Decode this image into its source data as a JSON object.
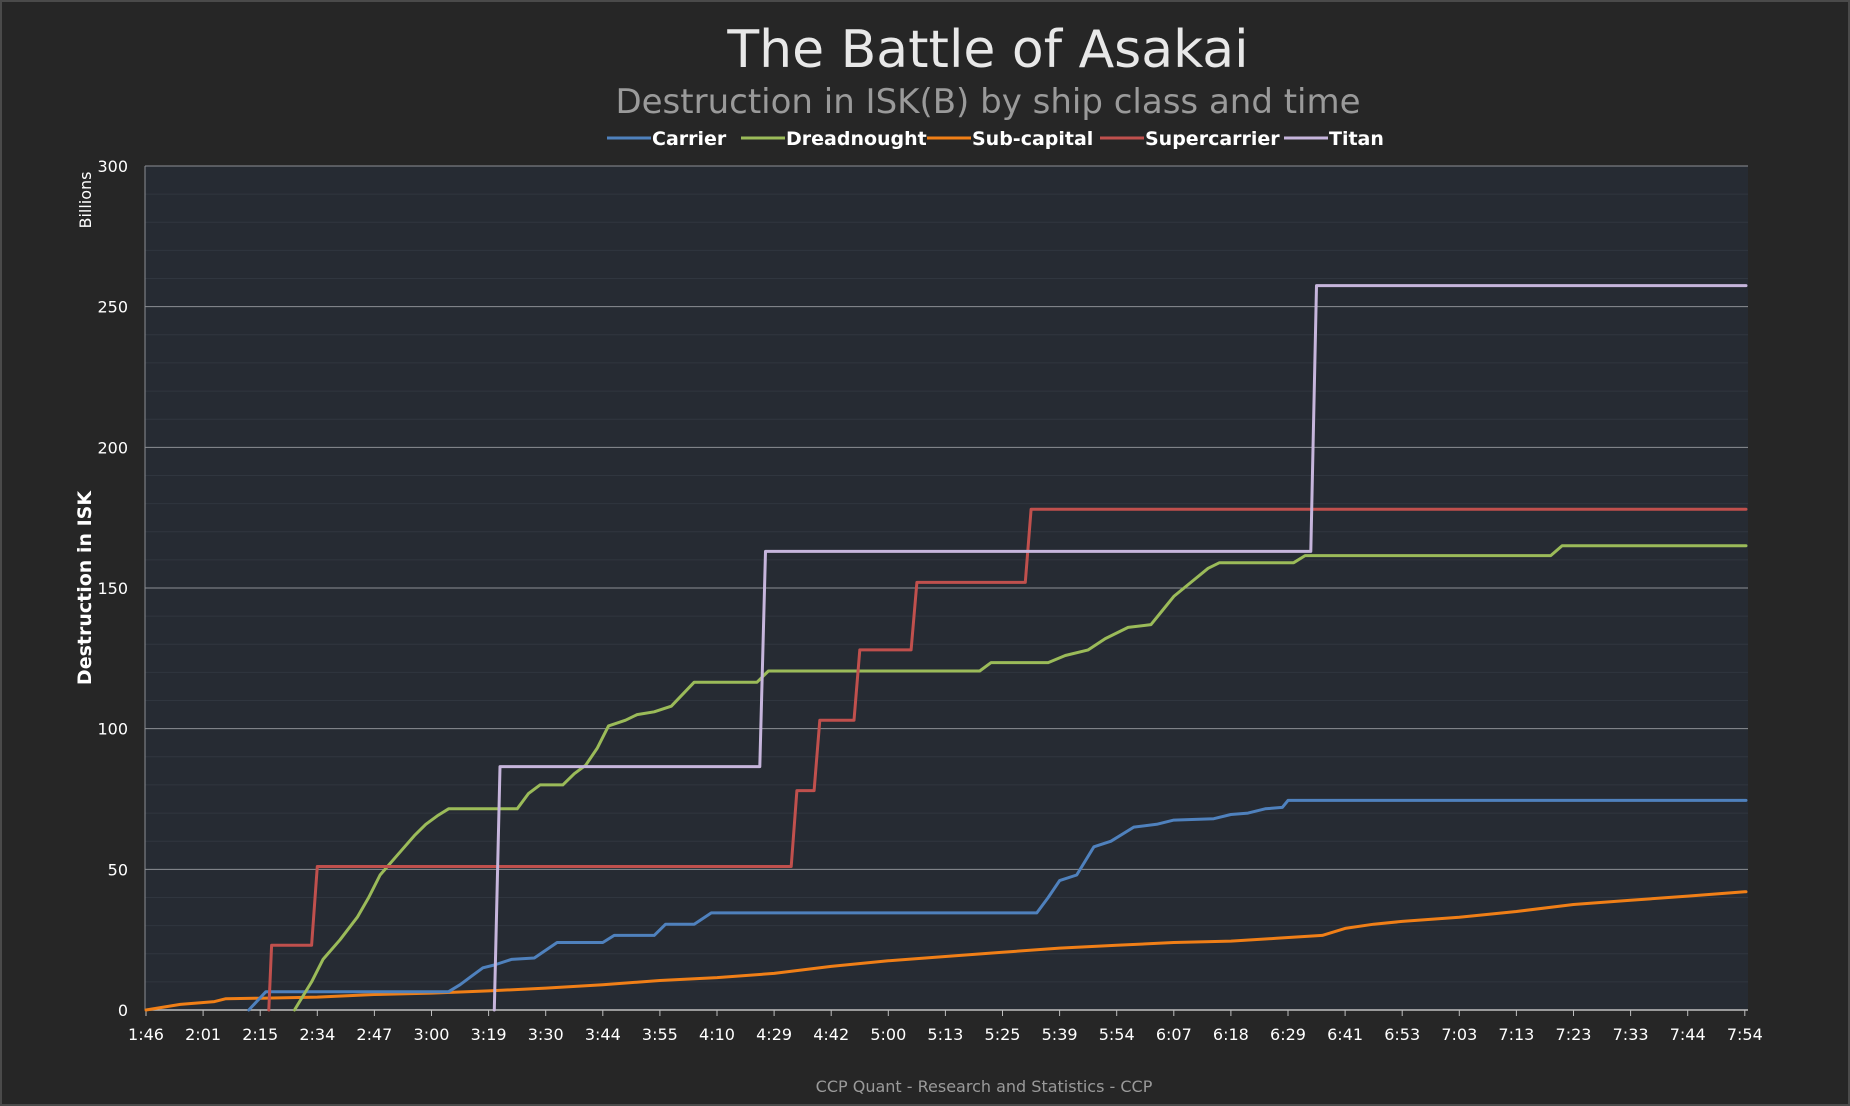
{
  "chart_data": {
    "type": "line",
    "title": "The Battle of Asakai",
    "subtitle": "Destruction in ISK(B) by ship class and time",
    "ylabel": "Destruction in ISK",
    "y_unit": "Billions",
    "credit": "CCP Quant - Research and Statistics - CCP",
    "ylim": [
      0,
      300
    ],
    "yticks": [
      0,
      50,
      100,
      150,
      200,
      250,
      300
    ],
    "grid": true,
    "legend_position": "top-center",
    "xlim": [
      0,
      28.5
    ],
    "xticks": [
      {
        "x": 0,
        "label": "1:46"
      },
      {
        "x": 1,
        "label": "2:01"
      },
      {
        "x": 2,
        "label": "2:15"
      },
      {
        "x": 3,
        "label": "2:34"
      },
      {
        "x": 4,
        "label": "2:47"
      },
      {
        "x": 5,
        "label": "3:00"
      },
      {
        "x": 6,
        "label": "3:19"
      },
      {
        "x": 7,
        "label": "3:30"
      },
      {
        "x": 8,
        "label": "3:44"
      },
      {
        "x": 9,
        "label": "3:55"
      },
      {
        "x": 10,
        "label": "4:10"
      },
      {
        "x": 11,
        "label": "4:29"
      },
      {
        "x": 12,
        "label": "4:42"
      },
      {
        "x": 13,
        "label": "5:00"
      },
      {
        "x": 14,
        "label": "5:13"
      },
      {
        "x": 15,
        "label": "5:25"
      },
      {
        "x": 16,
        "label": "5:39"
      },
      {
        "x": 17,
        "label": "5:54"
      },
      {
        "x": 18,
        "label": "6:07"
      },
      {
        "x": 19,
        "label": "6:18"
      },
      {
        "x": 20,
        "label": "6:29"
      },
      {
        "x": 21,
        "label": "6:41"
      },
      {
        "x": 22,
        "label": "6:53"
      },
      {
        "x": 23,
        "label": "7:03"
      },
      {
        "x": 24,
        "label": "7:13"
      },
      {
        "x": 25,
        "label": "7:23"
      },
      {
        "x": 26,
        "label": "7:33"
      },
      {
        "x": 27,
        "label": "7:44"
      },
      {
        "x": 28,
        "label": "7:54"
      }
    ],
    "series": [
      {
        "name": "Carrier",
        "color": "#4f81bd",
        "points": [
          [
            1.8,
            0
          ],
          [
            2.1,
            6.5
          ],
          [
            5.3,
            6.5
          ],
          [
            5.5,
            9
          ],
          [
            5.7,
            12
          ],
          [
            5.9,
            15
          ],
          [
            6.1,
            16
          ],
          [
            6.4,
            18
          ],
          [
            6.8,
            18.5
          ],
          [
            7.2,
            24
          ],
          [
            8,
            24
          ],
          [
            8.2,
            26.5
          ],
          [
            8.9,
            26.5
          ],
          [
            9.1,
            30.5
          ],
          [
            9.6,
            30.5
          ],
          [
            9.9,
            34.5
          ],
          [
            10.5,
            34.5
          ],
          [
            15.6,
            34.5
          ],
          [
            15.8,
            40
          ],
          [
            16.0,
            46
          ],
          [
            16.3,
            48
          ],
          [
            16.6,
            58
          ],
          [
            16.9,
            60
          ],
          [
            17.3,
            65
          ],
          [
            17.7,
            66
          ],
          [
            18.0,
            67.5
          ],
          [
            18.7,
            68
          ],
          [
            19.0,
            69.5
          ],
          [
            19.3,
            70
          ],
          [
            19.6,
            71.5
          ],
          [
            19.9,
            72
          ],
          [
            20.0,
            74.5
          ],
          [
            28.5,
            74.5
          ]
        ]
      },
      {
        "name": "Dreadnought",
        "color": "#9bbb59",
        "points": [
          [
            2.6,
            0
          ],
          [
            2.9,
            10
          ],
          [
            3.1,
            18
          ],
          [
            3.4,
            25
          ],
          [
            3.7,
            33
          ],
          [
            3.9,
            40
          ],
          [
            4.1,
            48
          ],
          [
            4.4,
            55
          ],
          [
            4.7,
            62
          ],
          [
            4.9,
            66
          ],
          [
            5.1,
            69
          ],
          [
            5.3,
            71.5
          ],
          [
            6.5,
            71.5
          ],
          [
            6.7,
            77
          ],
          [
            6.9,
            80
          ],
          [
            7.3,
            80
          ],
          [
            7.5,
            84
          ],
          [
            7.7,
            87
          ],
          [
            7.9,
            93
          ],
          [
            8.1,
            101
          ],
          [
            8.4,
            103
          ],
          [
            8.6,
            105
          ],
          [
            8.9,
            106
          ],
          [
            9.2,
            108
          ],
          [
            9.6,
            116.5
          ],
          [
            10.7,
            116.5
          ],
          [
            10.9,
            120.5
          ],
          [
            14.6,
            120.5
          ],
          [
            14.8,
            123.5
          ],
          [
            15.8,
            123.5
          ],
          [
            16.1,
            126
          ],
          [
            16.5,
            128
          ],
          [
            16.8,
            132
          ],
          [
            17.2,
            136
          ],
          [
            17.6,
            137
          ],
          [
            17.8,
            142
          ],
          [
            18.0,
            147
          ],
          [
            18.3,
            152
          ],
          [
            18.6,
            157
          ],
          [
            18.8,
            159
          ],
          [
            20.1,
            159
          ],
          [
            20.3,
            161.5
          ],
          [
            24.6,
            161.5
          ],
          [
            24.8,
            165
          ],
          [
            28.5,
            165
          ]
        ]
      },
      {
        "name": "Sub-capital",
        "color": "#f07f17",
        "points": [
          [
            0,
            0
          ],
          [
            0.6,
            2
          ],
          [
            1.2,
            3
          ],
          [
            1.4,
            4
          ],
          [
            2,
            4.2
          ],
          [
            3,
            4.6
          ],
          [
            4,
            5.5
          ],
          [
            5,
            6
          ],
          [
            6,
            6.8
          ],
          [
            7,
            7.8
          ],
          [
            8,
            9
          ],
          [
            9,
            10.5
          ],
          [
            10,
            11.5
          ],
          [
            11,
            13
          ],
          [
            12,
            15.5
          ],
          [
            13,
            17.5
          ],
          [
            14,
            19
          ],
          [
            15,
            20.5
          ],
          [
            16,
            22
          ],
          [
            17,
            23
          ],
          [
            18,
            24
          ],
          [
            19,
            24.5
          ],
          [
            19.8,
            25.5
          ],
          [
            20.6,
            26.5
          ],
          [
            21.0,
            29
          ],
          [
            21.5,
            30.5
          ],
          [
            22,
            31.5
          ],
          [
            23,
            33
          ],
          [
            24,
            35
          ],
          [
            25,
            37.5
          ],
          [
            26,
            39
          ],
          [
            27,
            40.5
          ],
          [
            28,
            42
          ],
          [
            28.5,
            42
          ]
        ]
      },
      {
        "name": "Supercarrier",
        "color": "#c0504d",
        "points": [
          [
            2.15,
            0
          ],
          [
            2.2,
            23
          ],
          [
            2.9,
            23
          ],
          [
            3.0,
            51
          ],
          [
            11.3,
            51
          ],
          [
            11.4,
            78
          ],
          [
            11.7,
            78
          ],
          [
            11.8,
            103
          ],
          [
            12.4,
            103
          ],
          [
            12.5,
            128
          ],
          [
            13.4,
            128
          ],
          [
            13.5,
            152
          ],
          [
            15.4,
            152
          ],
          [
            15.5,
            178
          ],
          [
            28.5,
            178
          ]
        ]
      },
      {
        "name": "Titan",
        "color": "#c6b5dc",
        "points": [
          [
            6.1,
            0
          ],
          [
            6.2,
            86.5
          ],
          [
            10.75,
            86.5
          ],
          [
            10.85,
            163
          ],
          [
            20.4,
            163
          ],
          [
            20.5,
            257.5
          ],
          [
            28.5,
            257.5
          ]
        ]
      }
    ]
  }
}
